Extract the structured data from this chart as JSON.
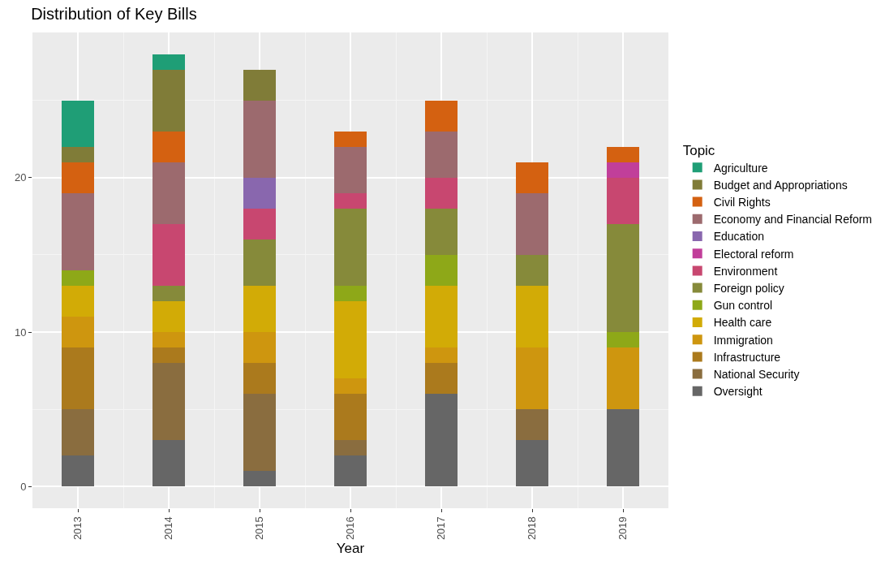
{
  "chart_data": {
    "type": "bar",
    "stacked": true,
    "title": "Distribution of Key Bills",
    "xlabel": "Year",
    "legend_title": "Topic",
    "legend": "right",
    "grid": true,
    "x": [
      2013,
      2014,
      2015,
      2016,
      2017,
      2018,
      2019
    ],
    "xlim": [
      2012.5,
      2019.5
    ],
    "xticks": [
      2013,
      2014,
      2015,
      2016,
      2017,
      2018,
      2019
    ],
    "ylim": [
      -1.4,
      29.4
    ],
    "yticks": [
      0,
      10,
      20
    ],
    "series": [
      {
        "name": "Oversight",
        "color": "#666666",
        "values": [
          2,
          3,
          1,
          2,
          6,
          3,
          5
        ]
      },
      {
        "name": "National Security",
        "color": "#8a6d3f",
        "values": [
          3,
          5,
          5,
          1,
          0,
          2,
          0
        ]
      },
      {
        "name": "Infrastructure",
        "color": "#ab7a1d",
        "values": [
          4,
          1,
          2,
          3,
          2,
          0,
          0
        ]
      },
      {
        "name": "Immigration",
        "color": "#ce960f",
        "values": [
          2,
          1,
          2,
          1,
          1,
          4,
          4
        ]
      },
      {
        "name": "Health care",
        "color": "#d2ab06",
        "values": [
          2,
          2,
          3,
          5,
          4,
          4,
          0
        ]
      },
      {
        "name": "Gun control",
        "color": "#8ea818",
        "values": [
          1,
          0,
          0,
          1,
          2,
          0,
          1
        ]
      },
      {
        "name": "Foreign policy",
        "color": "#868a3a",
        "values": [
          0,
          1,
          3,
          5,
          3,
          2,
          7
        ]
      },
      {
        "name": "Environment",
        "color": "#c84770",
        "values": [
          0,
          4,
          2,
          1,
          2,
          0,
          3
        ]
      },
      {
        "name": "Electoral reform",
        "color": "#c13f9a",
        "values": [
          0,
          0,
          0,
          0,
          0,
          0,
          1
        ]
      },
      {
        "name": "Education",
        "color": "#8967ae",
        "values": [
          0,
          0,
          2,
          0,
          0,
          0,
          0
        ]
      },
      {
        "name": "Economy and Financial Reform",
        "color": "#9c6a6e",
        "values": [
          5,
          4,
          5,
          3,
          3,
          4,
          0
        ]
      },
      {
        "name": "Civil Rights",
        "color": "#d46111",
        "values": [
          2,
          2,
          0,
          1,
          2,
          2,
          1
        ]
      },
      {
        "name": "Budget and Appropriations",
        "color": "#807c38",
        "values": [
          1,
          4,
          2,
          0,
          0,
          0,
          0
        ]
      },
      {
        "name": "Agriculture",
        "color": "#1f9e76",
        "values": [
          3,
          1,
          0,
          0,
          0,
          0,
          0
        ]
      }
    ]
  }
}
